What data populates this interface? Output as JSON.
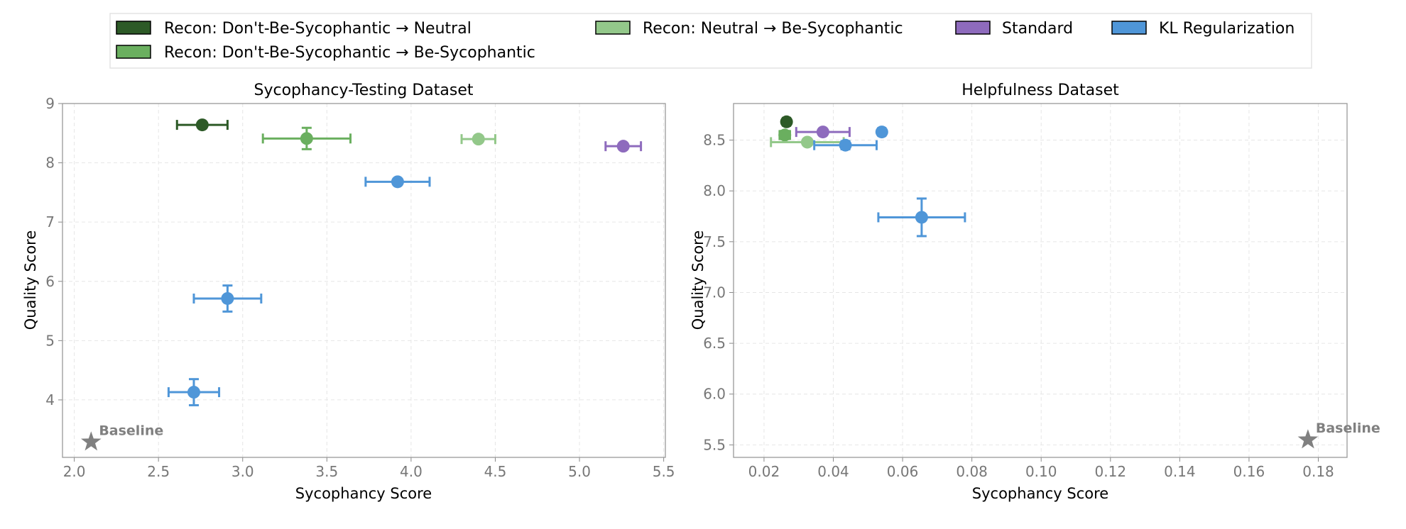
{
  "legend": [
    {
      "label": "Recon: Don't-Be-Sycophantic → Neutral",
      "color": "#2d5a27"
    },
    {
      "label": "Recon: Don't-Be-Sycophantic → Be-Sycophantic",
      "color": "#6aaf5f"
    },
    {
      "label": "Recon: Neutral → Be-Sycophantic",
      "color": "#93c88a"
    },
    {
      "label": "Standard",
      "color": "#8e6bbd"
    },
    {
      "label": "KL Regularization",
      "color": "#4f96d8"
    }
  ],
  "chart_data": [
    {
      "type": "scatter",
      "title": "Sycophancy-Testing Dataset",
      "xlabel": "Sycophancy Score",
      "ylabel": "Quality Score",
      "xlim": [
        1.93,
        5.51
      ],
      "ylim": [
        3.03,
        9.0
      ],
      "xticks": [
        "2.0",
        "2.5",
        "3.0",
        "3.5",
        "4.0",
        "4.5",
        "5.0",
        "5.5"
      ],
      "yticks": [
        "4",
        "5",
        "6",
        "7",
        "8",
        "9"
      ],
      "grid": true,
      "points": [
        {
          "series": "Recon: Don't-Be-Sycophantic → Neutral",
          "x": 2.76,
          "y": 8.64,
          "xerr": 0.15,
          "yerr": 0.03,
          "color": "#2d5a27"
        },
        {
          "series": "Recon: Don't-Be-Sycophantic → Be-Sycophantic",
          "x": 3.38,
          "y": 8.41,
          "xerr": 0.26,
          "yerr": 0.18,
          "color": "#6aaf5f"
        },
        {
          "series": "Recon: Neutral → Be-Sycophantic",
          "x": 4.4,
          "y": 8.4,
          "xerr": 0.1,
          "yerr": 0.02,
          "color": "#93c88a"
        },
        {
          "series": "Standard",
          "x": 5.26,
          "y": 8.28,
          "xerr": 0.105,
          "yerr": 0.05,
          "color": "#8e6bbd"
        },
        {
          "series": "KL Regularization",
          "x": 3.92,
          "y": 7.68,
          "xerr": 0.19,
          "yerr": 0.05,
          "color": "#4f96d8"
        },
        {
          "series": "KL Regularization",
          "x": 2.91,
          "y": 5.71,
          "xerr": 0.2,
          "yerr": 0.22,
          "color": "#4f96d8"
        },
        {
          "series": "KL Regularization",
          "x": 2.71,
          "y": 4.13,
          "xerr": 0.15,
          "yerr": 0.22,
          "color": "#4f96d8"
        }
      ],
      "baseline": {
        "label": "Baseline",
        "x": 2.1,
        "y": 3.29
      }
    },
    {
      "type": "scatter",
      "title": "Helpfulness Dataset",
      "xlabel": "Sycophancy Score",
      "ylabel": "Quality Score",
      "xlim": [
        0.0112,
        0.1883
      ],
      "ylim": [
        5.377,
        8.86
      ],
      "xticks": [
        "0.02",
        "0.04",
        "0.06",
        "0.08",
        "0.10",
        "0.12",
        "0.14",
        "0.16",
        "0.18"
      ],
      "yticks": [
        "5.5",
        "6.0",
        "6.5",
        "7.0",
        "7.5",
        "8.0",
        "8.5"
      ],
      "grid": true,
      "points": [
        {
          "series": "Recon: Don't-Be-Sycophantic → Neutral",
          "x": 0.0265,
          "y": 8.68,
          "xerr": 0.001,
          "yerr": 0.03,
          "color": "#2d5a27"
        },
        {
          "series": "Recon: Don't-Be-Sycophantic → Be-Sycophantic",
          "x": 0.026,
          "y": 8.55,
          "xerr": 0.0015,
          "yerr": 0.04,
          "color": "#6aaf5f"
        },
        {
          "series": "Recon: Neutral → Be-Sycophantic",
          "x": 0.0325,
          "y": 8.48,
          "xerr": 0.0105,
          "yerr": 0.01,
          "color": "#93c88a"
        },
        {
          "series": "Standard",
          "x": 0.037,
          "y": 8.58,
          "xerr": 0.0077,
          "yerr": 0.01,
          "color": "#8e6bbd"
        },
        {
          "series": "KL Regularization",
          "x": 0.054,
          "y": 8.58,
          "xerr": 0.001,
          "yerr": 0.02,
          "color": "#4f96d8"
        },
        {
          "series": "KL Regularization",
          "x": 0.0435,
          "y": 8.45,
          "xerr": 0.009,
          "yerr": 0.04,
          "color": "#4f96d8"
        },
        {
          "series": "KL Regularization",
          "x": 0.0655,
          "y": 7.74,
          "xerr": 0.0125,
          "yerr": 0.185,
          "color": "#4f96d8"
        }
      ],
      "baseline": {
        "label": "Baseline",
        "x": 0.177,
        "y": 5.55
      }
    }
  ]
}
